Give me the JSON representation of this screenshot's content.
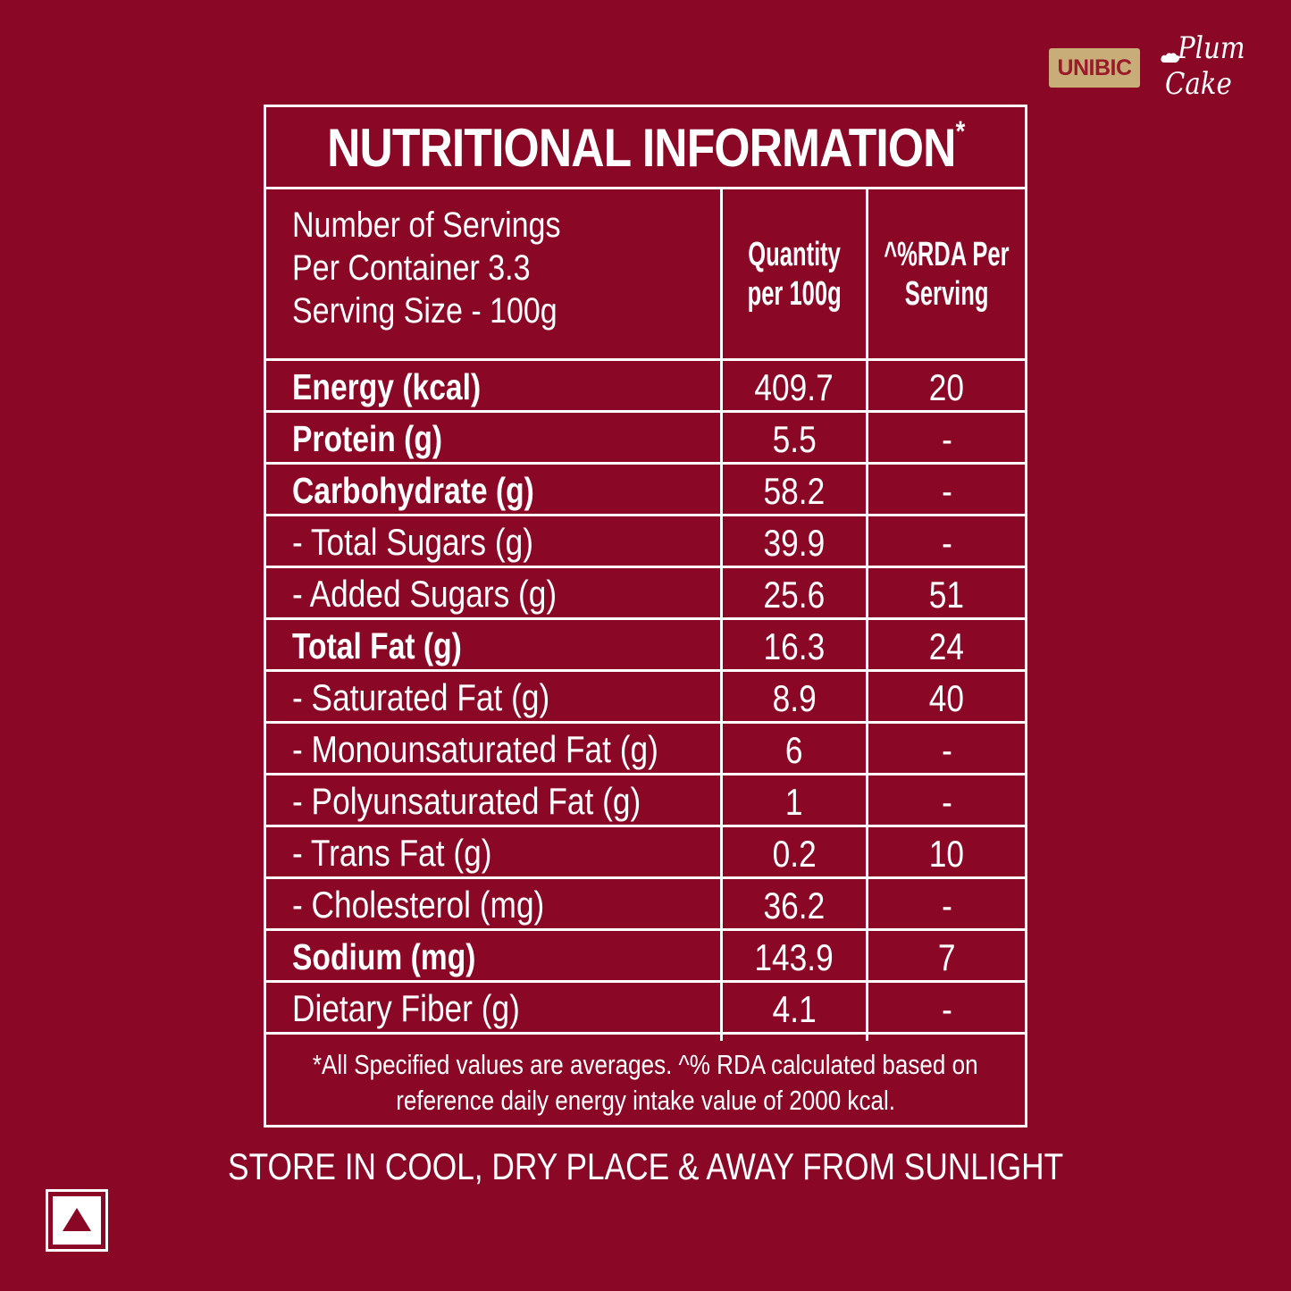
{
  "brand": {
    "badge_label": "UNIBIC",
    "product_line1": "Plum",
    "product_line2": "Cake"
  },
  "table": {
    "title": "NUTRITIONAL INFORMATION",
    "title_mark": "*",
    "serving": {
      "line1": "Number of Servings",
      "line2": "Per Container 3.3",
      "line3": "Serving Size - 100g"
    },
    "headers": {
      "quantity_line1": "Quantity",
      "quantity_line2": "per 100g",
      "rda_line1": "^%RDA Per",
      "rda_line2": "Serving"
    },
    "rows": [
      {
        "name": "Energy (kcal)",
        "qty": "409.7",
        "rda": "20"
      },
      {
        "name": "Protein (g)",
        "qty": "5.5",
        "rda": "-"
      },
      {
        "name": "Carbohydrate (g)",
        "qty": "58.2",
        "rda": "-"
      },
      {
        "name": "- Total Sugars (g)",
        "qty": "39.9",
        "rda": "-"
      },
      {
        "name": "- Added Sugars (g)",
        "qty": "25.6",
        "rda": "51"
      },
      {
        "name": "Total Fat (g)",
        "qty": "16.3",
        "rda": "24"
      },
      {
        "name": "- Saturated Fat (g)",
        "qty": "8.9",
        "rda": "40"
      },
      {
        "name": "- Monounsaturated Fat (g)",
        "qty": "6",
        "rda": "-"
      },
      {
        "name": "- Polyunsaturated Fat (g)",
        "qty": "1",
        "rda": "-"
      },
      {
        "name": "- Trans Fat (g)",
        "qty": "0.2",
        "rda": "10"
      },
      {
        "name": "- Cholesterol (mg)",
        "qty": "36.2",
        "rda": "-"
      },
      {
        "name": "Sodium (mg)",
        "qty": "143.9",
        "rda": "7"
      },
      {
        "name": "Dietary Fiber (g)",
        "qty": "4.1",
        "rda": "-"
      }
    ],
    "footnote_line1": "*All Specified values are averages. ^% RDA calculated based on",
    "footnote_line2": "reference daily energy intake value of 2000 kcal."
  },
  "storage_instruction": "STORE IN COOL, DRY PLACE & AWAY FROM SUNLIGHT",
  "colors": {
    "background": "#8b0726",
    "text": "#ffffff",
    "badge": "#c9ad78",
    "badge_text": "#9a1a2c",
    "symbol": "#8b0726"
  },
  "icons": {
    "non_veg_symbol": "brown-triangle-in-square"
  }
}
